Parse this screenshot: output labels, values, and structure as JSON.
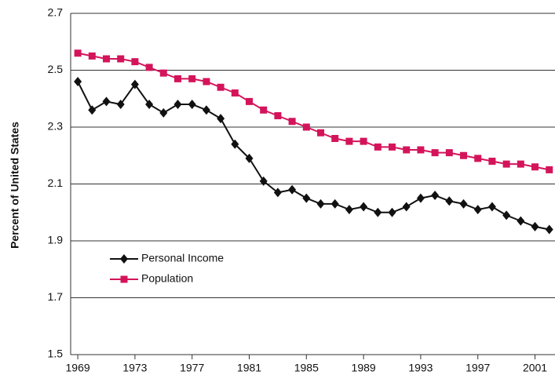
{
  "chart_data": {
    "type": "line",
    "y_label": "Percent of United States",
    "x": [
      1969,
      1970,
      1971,
      1972,
      1973,
      1974,
      1975,
      1976,
      1977,
      1978,
      1979,
      1980,
      1981,
      1982,
      1983,
      1984,
      1985,
      1986,
      1987,
      1988,
      1989,
      1990,
      1991,
      1992,
      1993,
      1994,
      1995,
      1996,
      1997,
      1998,
      1999,
      2000,
      2001,
      2002
    ],
    "series": [
      {
        "name": "Personal Income",
        "color": "#111111",
        "marker": "diamond",
        "values": [
          2.46,
          2.36,
          2.39,
          2.38,
          2.45,
          2.38,
          2.35,
          2.38,
          2.38,
          2.36,
          2.33,
          2.24,
          2.19,
          2.11,
          2.07,
          2.08,
          2.05,
          2.03,
          2.03,
          2.01,
          2.02,
          2.0,
          2.0,
          2.02,
          2.05,
          2.06,
          2.04,
          2.03,
          2.01,
          2.02,
          1.99,
          1.97,
          1.95,
          1.94
        ]
      },
      {
        "name": "Population",
        "color": "#d4145a",
        "marker": "square",
        "values": [
          2.56,
          2.55,
          2.54,
          2.54,
          2.53,
          2.51,
          2.49,
          2.47,
          2.47,
          2.46,
          2.44,
          2.42,
          2.39,
          2.36,
          2.34,
          2.32,
          2.3,
          2.28,
          2.26,
          2.25,
          2.25,
          2.23,
          2.23,
          2.22,
          2.22,
          2.21,
          2.21,
          2.2,
          2.19,
          2.18,
          2.17,
          2.17,
          2.16,
          2.15
        ]
      }
    ],
    "xlim": [
      1968.5,
      2002.4
    ],
    "xticks": [
      1969,
      1973,
      1977,
      1981,
      1985,
      1989,
      1993,
      1997,
      2001
    ],
    "ylim": [
      1.5,
      2.7
    ],
    "yticks": [
      1.5,
      1.7,
      1.9,
      2.1,
      2.3,
      2.5,
      2.7
    ],
    "grid": true,
    "legend": "lower left"
  }
}
